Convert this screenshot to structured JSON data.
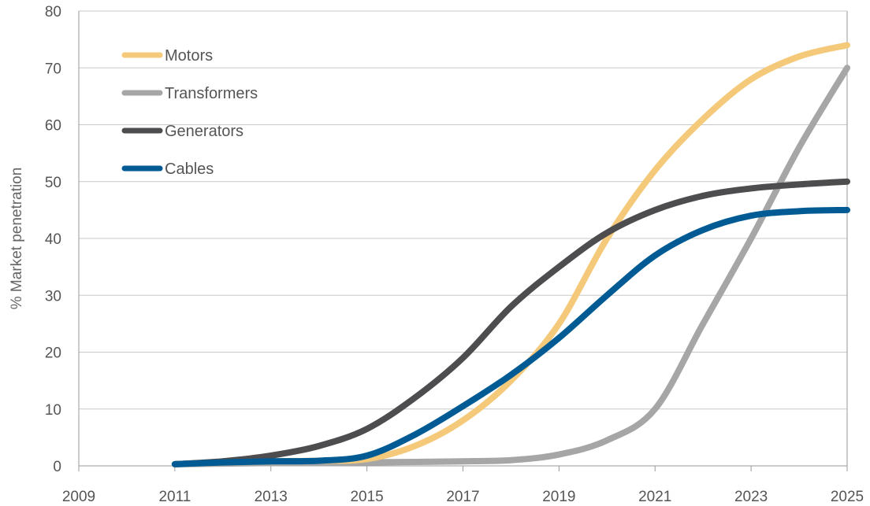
{
  "chart_data": {
    "type": "line",
    "ylabel": "% Market penetration",
    "xlim": [
      2009,
      2025
    ],
    "ylim": [
      0,
      80
    ],
    "x_ticks": [
      "2009",
      "2011",
      "2013",
      "2015",
      "2017",
      "2019",
      "2021",
      "2023",
      "2025"
    ],
    "y_ticks": [
      "0",
      "10",
      "20",
      "30",
      "40",
      "50",
      "60",
      "70",
      "80"
    ],
    "grid": "horizontal",
    "legend": "top-left",
    "x": [
      2011,
      2012,
      2013,
      2014,
      2015,
      2016,
      2017,
      2018,
      2019,
      2020,
      2021,
      2022,
      2023,
      2024,
      2025
    ],
    "series": [
      {
        "name": "Motors",
        "color": "#f5c97a",
        "values": [
          0.3,
          0.6,
          0.8,
          0.9,
          1.2,
          3.5,
          8,
          15,
          25,
          40,
          52,
          61,
          68,
          72,
          74
        ]
      },
      {
        "name": "Transformers",
        "color": "#a6a6a6",
        "values": [
          0.3,
          0.4,
          0.5,
          0.5,
          0.6,
          0.7,
          0.8,
          1.0,
          2.0,
          4.5,
          10,
          25,
          40,
          56,
          70
        ]
      },
      {
        "name": "Generators",
        "color": "#4d4d4f",
        "values": [
          0.3,
          0.8,
          1.8,
          3.5,
          6.5,
          12,
          19,
          28,
          35,
          41,
          45,
          47.5,
          48.8,
          49.5,
          50
        ]
      },
      {
        "name": "Cables",
        "color": "#005b94",
        "values": [
          0.3,
          0.6,
          0.8,
          0.9,
          1.8,
          5.5,
          10.5,
          16,
          22.5,
          30,
          37,
          41.5,
          44,
          44.8,
          45
        ]
      }
    ]
  }
}
